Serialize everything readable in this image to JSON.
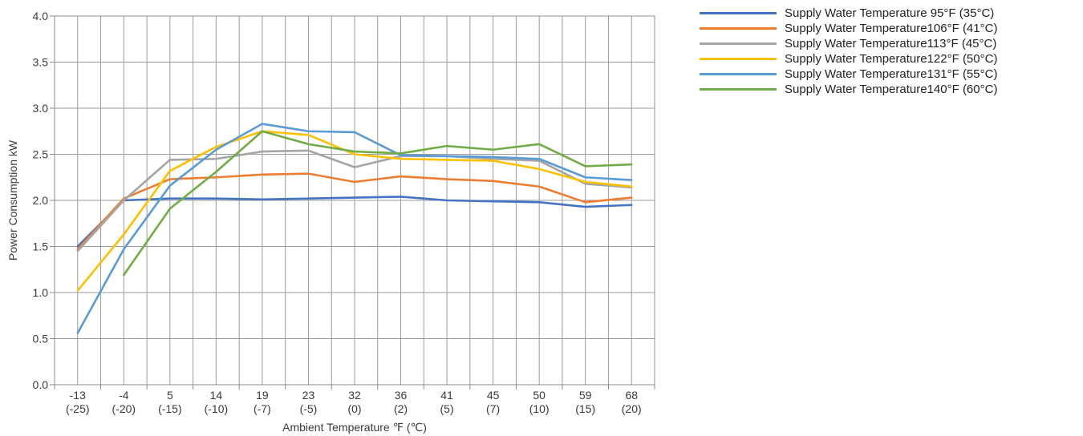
{
  "chart_data": {
    "type": "line",
    "xlabel": "Ambient Temperature ℉ (℃)",
    "ylabel": "Power Consumption kW",
    "ylim": [
      0,
      4
    ],
    "yticks": [
      "0.0",
      "0.5",
      "1.0",
      "1.5",
      "2.0",
      "2.5",
      "3.0",
      "3.5",
      "4.0"
    ],
    "categories": [
      {
        "f": "-13",
        "c": "(-25)"
      },
      {
        "f": "-4",
        "c": "(-20)"
      },
      {
        "f": "5",
        "c": "(-15)"
      },
      {
        "f": "14",
        "c": "(-10)"
      },
      {
        "f": "19",
        "c": "(-7)"
      },
      {
        "f": "23",
        "c": "(-5)"
      },
      {
        "f": "32",
        "c": "(0)"
      },
      {
        "f": "36",
        "c": "(2)"
      },
      {
        "f": "41",
        "c": "(5)"
      },
      {
        "f": "45",
        "c": "(7)"
      },
      {
        "f": "50",
        "c": "(10)"
      },
      {
        "f": "59",
        "c": "(15)"
      },
      {
        "f": "68",
        "c": "(20)"
      }
    ],
    "grid": true,
    "legend_position": "top-right",
    "series": [
      {
        "name": "Supply Water Temperature 95°F (35°C)",
        "color": "#4472c4",
        "values": [
          1.5,
          2.0,
          2.02,
          2.02,
          2.01,
          2.02,
          2.03,
          2.04,
          2.0,
          1.99,
          1.98,
          1.93,
          1.95
        ]
      },
      {
        "name": "Supply Water Temperature106°F (41°C)",
        "color": "#ed7d31",
        "values": [
          1.47,
          2.02,
          2.23,
          2.25,
          2.28,
          2.29,
          2.2,
          2.26,
          2.23,
          2.21,
          2.15,
          1.98,
          2.03
        ]
      },
      {
        "name": "Supply Water Temperature113°F (45°C)",
        "color": "#a5a5a5",
        "values": [
          1.45,
          2.0,
          2.44,
          2.45,
          2.53,
          2.54,
          2.36,
          2.48,
          2.48,
          2.45,
          2.43,
          2.18,
          2.14
        ]
      },
      {
        "name": "Supply Water Temperature122°F (50°C)",
        "color": "#ffc000",
        "values": [
          1.02,
          1.63,
          2.32,
          2.58,
          2.75,
          2.71,
          2.5,
          2.45,
          2.44,
          2.43,
          2.34,
          2.2,
          2.15
        ]
      },
      {
        "name": "Supply Water Temperature131°F (55°C)",
        "color": "#5b9bd5",
        "values": [
          0.56,
          1.47,
          2.16,
          2.55,
          2.83,
          2.75,
          2.74,
          2.49,
          2.48,
          2.47,
          2.45,
          2.25,
          2.22
        ]
      },
      {
        "name": "Supply Water Temperature140°F (60°C)",
        "color": "#70ad47",
        "values": [
          null,
          1.19,
          1.91,
          2.31,
          2.75,
          2.61,
          2.53,
          2.51,
          2.59,
          2.55,
          2.61,
          2.37,
          2.39
        ]
      }
    ]
  }
}
